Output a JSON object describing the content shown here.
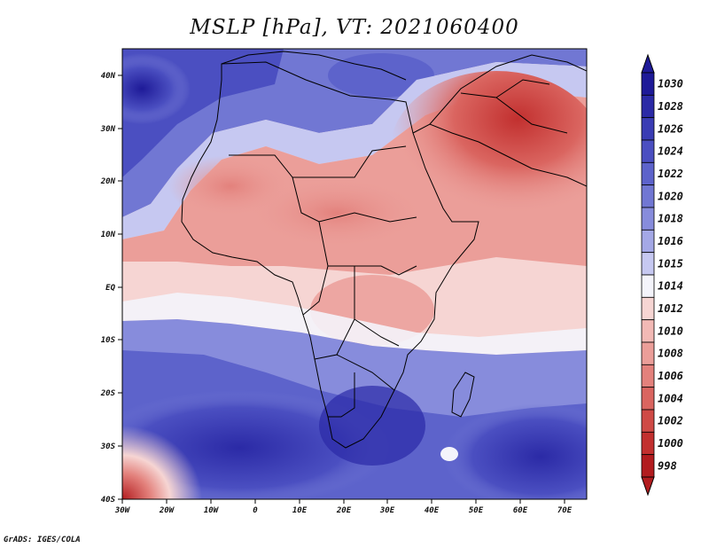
{
  "title": "MSLP [hPa], VT: 2021060400",
  "credit": "GrADS: IGES/COLA",
  "map": {
    "variable": "MSLP",
    "units": "hPa",
    "valid_time": "2021060400",
    "lon_range": [
      -30,
      75
    ],
    "lat_range": [
      -40,
      45
    ],
    "x_ticks": [
      "30W",
      "20W",
      "10W",
      "0",
      "10E",
      "20E",
      "30E",
      "40E",
      "50E",
      "60E",
      "70E"
    ],
    "y_ticks": [
      "40N",
      "30N",
      "20N",
      "10N",
      "EQ",
      "10S",
      "20S",
      "30S",
      "40S"
    ]
  },
  "colorbar": {
    "levels": [
      "1030",
      "1028",
      "1026",
      "1024",
      "1022",
      "1020",
      "1018",
      "1016",
      "1015",
      "1014",
      "1012",
      "1010",
      "1008",
      "1006",
      "1004",
      "1002",
      "1000",
      "998"
    ],
    "colors": [
      "#1e1a98",
      "#2b2aa6",
      "#3a3cb4",
      "#4b4fc1",
      "#5d63cb",
      "#7177d3",
      "#878cdc",
      "#a4a8e6",
      "#c6c8f1",
      "#f4f4fb",
      "#f6d5d3",
      "#f2b9b5",
      "#eb9e99",
      "#e3817c",
      "#da6560",
      "#cf4a46",
      "#c2302f",
      "#b21c1f"
    ]
  }
}
